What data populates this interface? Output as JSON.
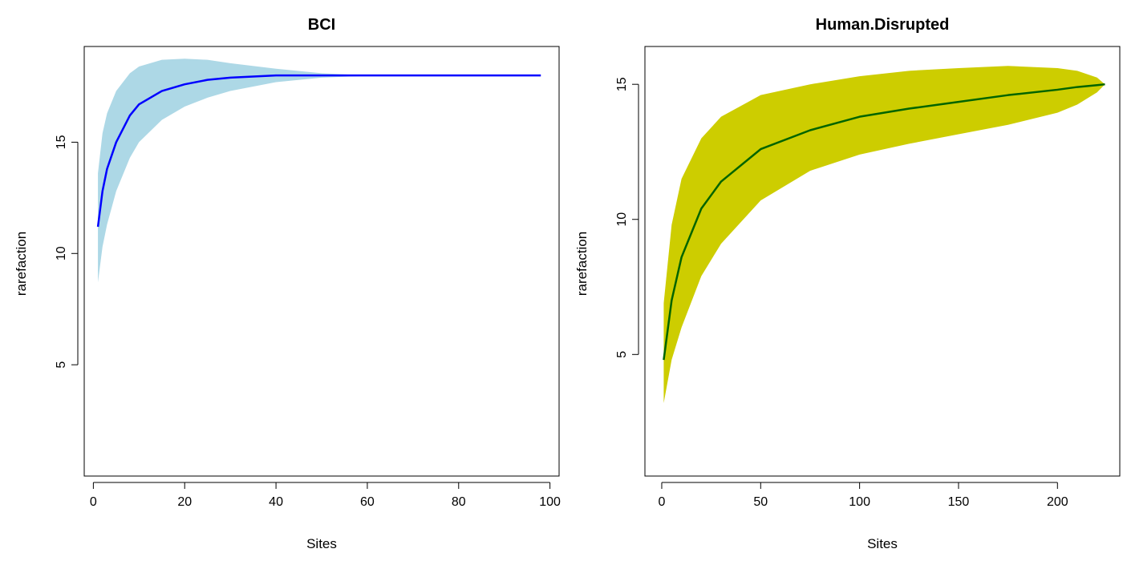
{
  "chart_data": [
    {
      "type": "area",
      "title": "BCI",
      "xlabel": "Sites",
      "ylabel": "rarefaction",
      "xlim": [
        -2,
        102
      ],
      "ylim": [
        0,
        19.3
      ],
      "xticks": [
        0,
        20,
        40,
        60,
        80,
        100
      ],
      "yticks": [
        5,
        10,
        15
      ],
      "grid": false,
      "band_color": "#add8e6",
      "line_color": "#0000ff",
      "x": [
        1,
        2,
        3,
        5,
        8,
        10,
        15,
        20,
        25,
        30,
        40,
        50,
        60,
        70,
        80,
        90,
        98
      ],
      "series": [
        {
          "role": "mean",
          "values": [
            11.2,
            12.8,
            13.8,
            15.0,
            16.2,
            16.7,
            17.3,
            17.6,
            17.8,
            17.9,
            18.0,
            18.0,
            18.0,
            18.0,
            18.0,
            18.0,
            18.0
          ]
        },
        {
          "role": "upper",
          "values": [
            13.6,
            15.4,
            16.3,
            17.3,
            18.1,
            18.4,
            18.7,
            18.75,
            18.7,
            18.55,
            18.3,
            18.1,
            18.0,
            18.0,
            18.0,
            18.0,
            18.0
          ]
        },
        {
          "role": "lower",
          "values": [
            8.7,
            10.3,
            11.3,
            12.8,
            14.3,
            15.0,
            16.0,
            16.6,
            17.0,
            17.3,
            17.7,
            17.9,
            17.98,
            18.0,
            18.0,
            18.0,
            18.0
          ]
        }
      ]
    },
    {
      "type": "area",
      "title": "Human.Disrupted",
      "xlabel": "Sites",
      "ylabel": "rarefaction",
      "xlim": [
        -8.5,
        231.5
      ],
      "ylim": [
        0.5,
        16.4
      ],
      "xticks": [
        0,
        50,
        100,
        150,
        200
      ],
      "yticks": [
        5,
        10,
        15
      ],
      "grid": false,
      "band_color": "#cdcd00",
      "line_color": "#006400",
      "x": [
        1,
        5,
        10,
        20,
        30,
        50,
        75,
        100,
        125,
        150,
        175,
        200,
        210,
        220,
        224
      ],
      "series": [
        {
          "role": "mean",
          "values": [
            4.8,
            7.0,
            8.6,
            10.4,
            11.4,
            12.6,
            13.3,
            13.8,
            14.1,
            14.35,
            14.6,
            14.8,
            14.9,
            14.97,
            15.0
          ]
        },
        {
          "role": "upper",
          "values": [
            6.9,
            9.8,
            11.5,
            13.0,
            13.8,
            14.6,
            15.0,
            15.3,
            15.5,
            15.6,
            15.68,
            15.6,
            15.5,
            15.25,
            15.0
          ]
        },
        {
          "role": "lower",
          "values": [
            3.2,
            4.8,
            6.0,
            7.9,
            9.1,
            10.7,
            11.8,
            12.4,
            12.8,
            13.15,
            13.5,
            13.95,
            14.25,
            14.7,
            15.0
          ]
        }
      ]
    }
  ]
}
